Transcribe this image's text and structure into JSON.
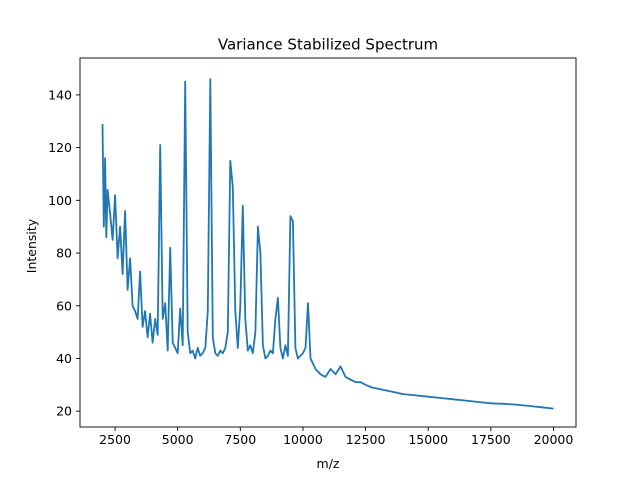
{
  "chart_data": {
    "type": "line",
    "title": "Variance Stabilized Spectrum",
    "xlabel": "m/z",
    "ylabel": "Intensity",
    "xlim": [
      1100,
      20900
    ],
    "ylim": [
      14,
      154
    ],
    "xticks": [
      2500,
      5000,
      7500,
      10000,
      12500,
      15000,
      17500,
      20000
    ],
    "xtick_labels": [
      "2500",
      "5000",
      "7500",
      "10000",
      "12500",
      "15000",
      "17500",
      "20000"
    ],
    "yticks": [
      20,
      40,
      60,
      80,
      100,
      120,
      140
    ],
    "ytick_labels": [
      "20",
      "40",
      "60",
      "80",
      "100",
      "120",
      "140"
    ],
    "grid": false,
    "legend": "none",
    "series": [
      {
        "color": "#1f77b4",
        "x": [
          2000,
          2050,
          2100,
          2150,
          2200,
          2300,
          2400,
          2500,
          2600,
          2700,
          2800,
          2900,
          3000,
          3100,
          3200,
          3300,
          3400,
          3500,
          3600,
          3700,
          3800,
          3900,
          4000,
          4100,
          4200,
          4300,
          4400,
          4500,
          4600,
          4700,
          4800,
          4900,
          5000,
          5100,
          5200,
          5300,
          5400,
          5500,
          5600,
          5700,
          5800,
          5900,
          6000,
          6100,
          6200,
          6300,
          6400,
          6500,
          6600,
          6700,
          6800,
          6900,
          7000,
          7100,
          7200,
          7300,
          7400,
          7500,
          7600,
          7700,
          7800,
          7900,
          8000,
          8100,
          8200,
          8300,
          8400,
          8500,
          8600,
          8700,
          8800,
          8900,
          9000,
          9100,
          9200,
          9300,
          9400,
          9500,
          9600,
          9700,
          9800,
          9900,
          10000,
          10100,
          10200,
          10300,
          10400,
          10500,
          10700,
          10900,
          11100,
          11300,
          11500,
          11700,
          11900,
          12100,
          12300,
          12500,
          12750,
          13000,
          13250,
          13500,
          13750,
          14000,
          14500,
          15000,
          15500,
          16000,
          16500,
          17000,
          17500,
          18000,
          18500,
          19000,
          19500,
          20000
        ],
        "y": [
          129,
          90,
          116,
          86,
          104,
          95,
          85,
          102,
          78,
          90,
          72,
          96,
          66,
          78,
          60,
          58,
          55,
          73,
          52,
          58,
          48,
          57,
          46,
          55,
          49,
          121,
          55,
          61,
          43,
          82,
          46,
          44,
          42,
          59,
          45,
          145,
          50,
          42,
          43,
          40,
          44,
          41,
          42,
          44,
          58,
          146,
          48,
          42,
          41,
          43,
          42,
          44,
          50,
          115,
          105,
          58,
          44,
          60,
          98,
          55,
          43,
          45,
          42,
          50,
          90,
          80,
          45,
          40,
          41,
          43,
          42,
          55,
          63,
          44,
          40,
          45,
          41,
          94,
          92,
          44,
          40,
          41,
          42,
          44,
          61,
          40,
          38,
          36,
          34,
          33,
          36,
          34,
          37,
          33,
          32,
          31,
          31,
          30,
          29,
          28.5,
          28,
          27.5,
          27,
          26.5,
          26,
          25.5,
          25,
          24.5,
          24,
          23.5,
          23,
          22.8,
          22.5,
          22,
          21.5,
          21
        ]
      }
    ]
  }
}
